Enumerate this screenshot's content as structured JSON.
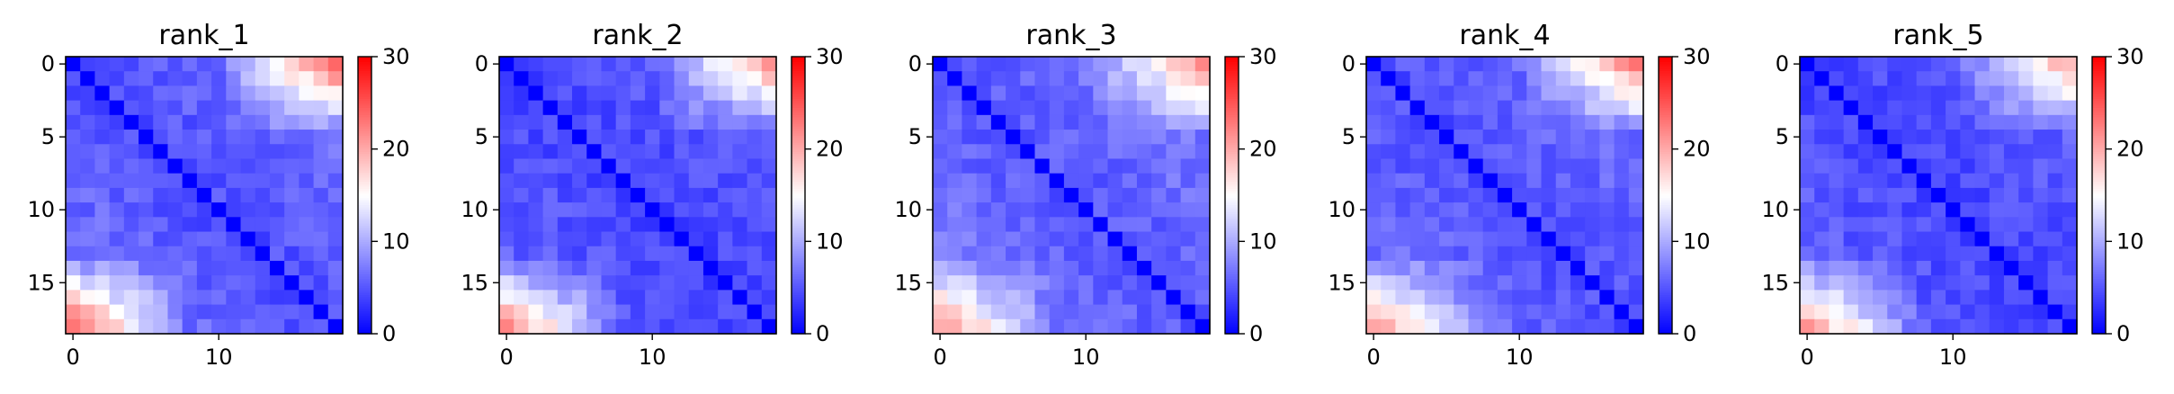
{
  "chart_data": [
    {
      "type": "heatmap",
      "title": "rank_1",
      "size": 19,
      "xticks": [
        0,
        10
      ],
      "yticks": [
        0,
        5,
        10,
        15
      ],
      "colorbar": {
        "range": [
          0,
          30
        ],
        "ticks": [
          0,
          10,
          20,
          30
        ],
        "colors": [
          "#0000ff",
          "#ffffff",
          "#ff0000"
        ]
      },
      "diagonal": 0,
      "min_edge": 4.5,
      "edge_value": 21,
      "top_right_peak": 24,
      "bottom_left_peak": 24,
      "corner_amp": 10,
      "interior": 6.5,
      "noise_seed": 11
    },
    {
      "type": "heatmap",
      "title": "rank_2",
      "size": 19,
      "xticks": [
        0,
        10
      ],
      "yticks": [
        0,
        5,
        10,
        15
      ],
      "colorbar": {
        "range": [
          0,
          30
        ],
        "ticks": [
          0,
          10,
          20,
          30
        ],
        "colors": [
          "#0000ff",
          "#ffffff",
          "#ff0000"
        ]
      },
      "diagonal": 0,
      "min_edge": 4.0,
      "edge_value": 19,
      "top_right_peak": 21,
      "bottom_left_peak": 22,
      "corner_amp": 9,
      "interior": 5.5,
      "noise_seed": 23
    },
    {
      "type": "heatmap",
      "title": "rank_3",
      "size": 19,
      "xticks": [
        0,
        10
      ],
      "yticks": [
        0,
        5,
        10,
        15
      ],
      "colorbar": {
        "range": [
          0,
          30
        ],
        "ticks": [
          0,
          10,
          20,
          30
        ],
        "colors": [
          "#0000ff",
          "#ffffff",
          "#ff0000"
        ]
      },
      "diagonal": 0,
      "min_edge": 5.0,
      "edge_value": 22,
      "top_right_peak": 21,
      "bottom_left_peak": 21,
      "corner_amp": 11,
      "interior": 7.0,
      "noise_seed": 37
    },
    {
      "type": "heatmap",
      "title": "rank_4",
      "size": 19,
      "xticks": [
        0,
        10
      ],
      "yticks": [
        0,
        5,
        10,
        15
      ],
      "colorbar": {
        "range": [
          0,
          30
        ],
        "ticks": [
          0,
          10,
          20,
          30
        ],
        "colors": [
          "#0000ff",
          "#ffffff",
          "#ff0000"
        ]
      },
      "diagonal": 0,
      "min_edge": 4.5,
      "edge_value": 21,
      "top_right_peak": 22,
      "bottom_left_peak": 21,
      "corner_amp": 10,
      "interior": 6.5,
      "noise_seed": 41
    },
    {
      "type": "heatmap",
      "title": "rank_5",
      "size": 19,
      "xticks": [
        0,
        10
      ],
      "yticks": [
        0,
        5,
        10,
        15
      ],
      "colorbar": {
        "range": [
          0,
          30
        ],
        "ticks": [
          0,
          10,
          20,
          30
        ],
        "colors": [
          "#0000ff",
          "#ffffff",
          "#ff0000"
        ]
      },
      "diagonal": 0,
      "min_edge": 4.0,
      "edge_value": 19,
      "top_right_peak": 20,
      "bottom_left_peak": 21,
      "corner_amp": 9,
      "interior": 5.5,
      "noise_seed": 53
    }
  ]
}
